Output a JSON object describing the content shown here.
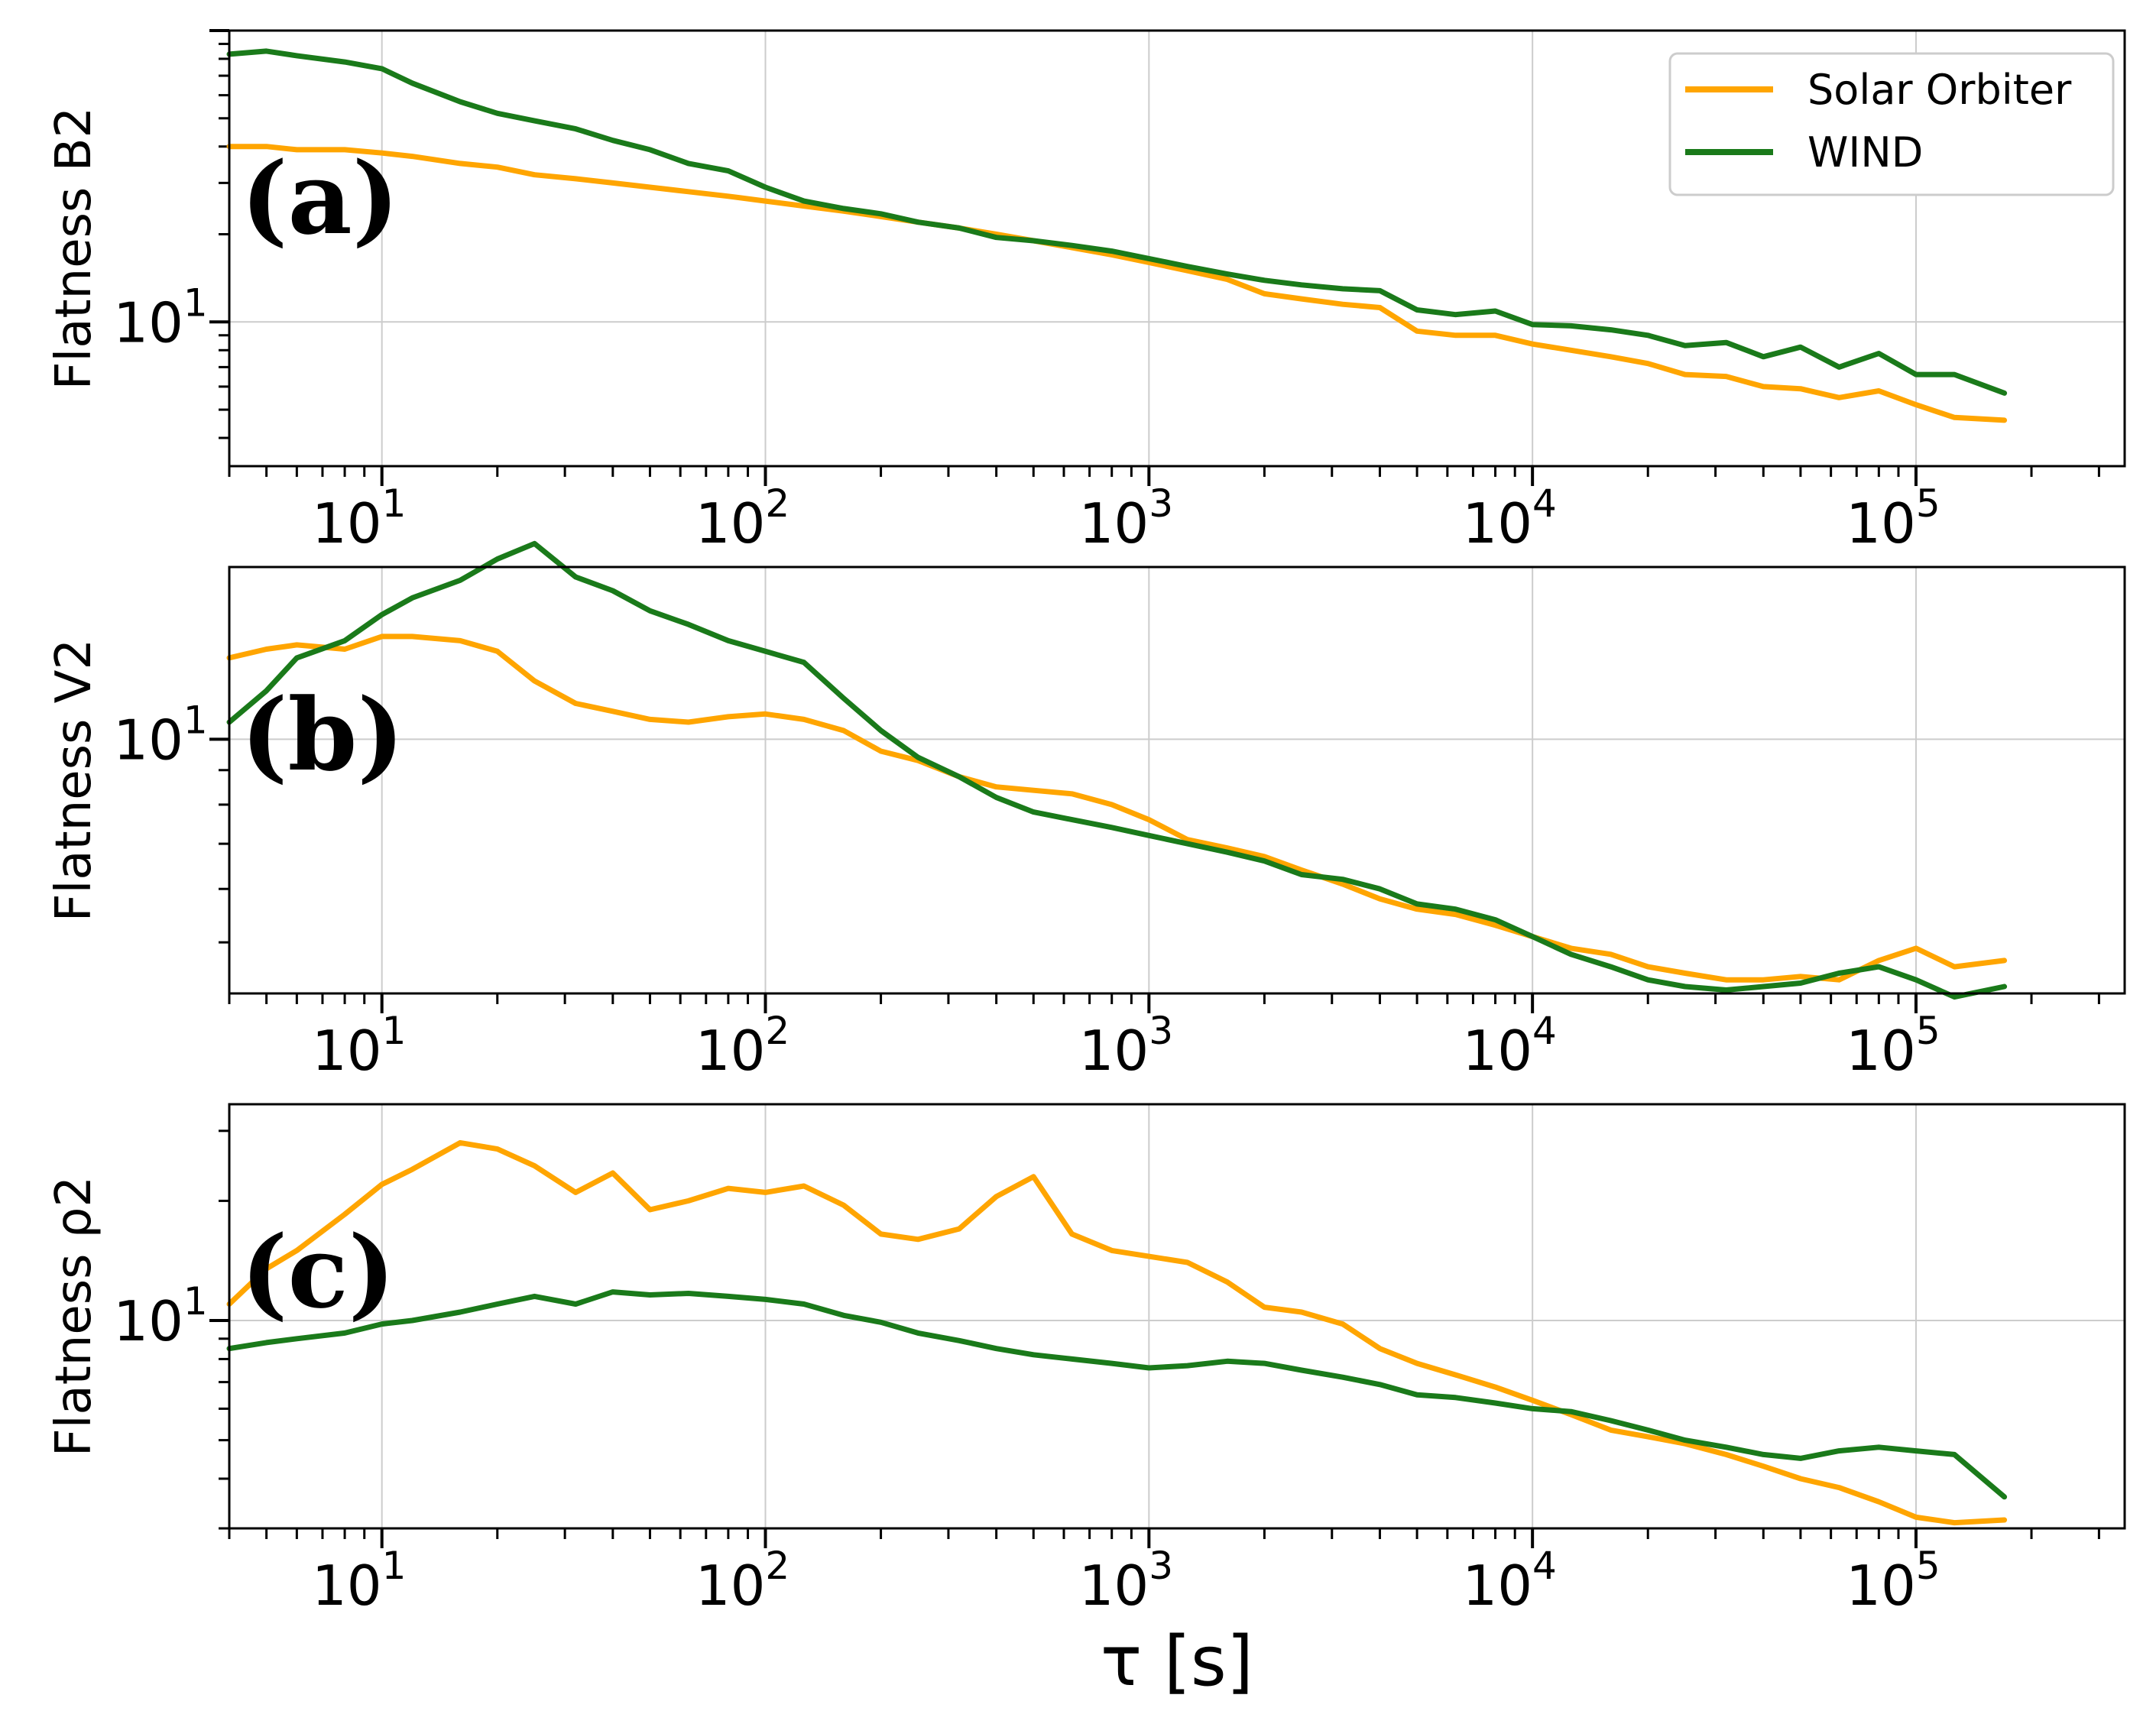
{
  "colors": {
    "solar_orbiter": "#ffa500",
    "wind": "#1a7a1a",
    "grid": "#cccccc",
    "axis": "#000000"
  },
  "legend": {
    "entries": [
      "Solar Orbiter",
      "WIND"
    ],
    "position": "top-right"
  },
  "xlabel": "τ [s]",
  "x_tick_labels": [
    {
      "base": "10",
      "exp": "1"
    },
    {
      "base": "10",
      "exp": "2"
    },
    {
      "base": "10",
      "exp": "3"
    },
    {
      "base": "10",
      "exp": "4"
    },
    {
      "base": "10",
      "exp": "5"
    }
  ],
  "chart_data": [
    {
      "type": "line",
      "xscale": "log",
      "yscale": "log",
      "panel_label": "(a)",
      "ylabel": "Flatness B2",
      "xlim": [
        4,
        350000
      ],
      "ylim": [
        3.2,
        100
      ],
      "y_tick_label": {
        "value": 10,
        "base": "10",
        "exp": "1"
      },
      "x": [
        4,
        5,
        6,
        8,
        10,
        12,
        16,
        20,
        25,
        32,
        40,
        50,
        63,
        80,
        100,
        126,
        160,
        200,
        250,
        320,
        400,
        500,
        630,
        800,
        1000,
        1260,
        1600,
        2000,
        2500,
        3200,
        4000,
        5000,
        6300,
        8000,
        10000,
        12600,
        16000,
        20000,
        25000,
        32000,
        40000,
        50000,
        63000,
        80000,
        100000,
        126000,
        170000
      ],
      "series": [
        {
          "name": "Solar Orbiter",
          "values": [
            40,
            40,
            39,
            39,
            38,
            37,
            35,
            34,
            32,
            31,
            30,
            29,
            28,
            27,
            26,
            25,
            24,
            23,
            22,
            21,
            20,
            19,
            18,
            17,
            16,
            15,
            14,
            12.5,
            12,
            11.5,
            11.2,
            9.3,
            9.0,
            9.0,
            8.4,
            8.0,
            7.6,
            7.2,
            6.6,
            6.5,
            6.0,
            5.9,
            5.5,
            5.8,
            5.2,
            4.7,
            4.6
          ]
        },
        {
          "name": "WIND",
          "values": [
            83,
            85,
            82,
            78,
            74,
            66,
            57,
            52,
            49,
            46,
            42,
            39,
            35,
            33,
            29,
            26,
            24.5,
            23.5,
            22,
            21,
            19.5,
            19,
            18.3,
            17.5,
            16.5,
            15.5,
            14.6,
            13.9,
            13.4,
            13.0,
            12.8,
            11.0,
            10.6,
            10.9,
            9.8,
            9.7,
            9.4,
            9.0,
            8.3,
            8.5,
            7.6,
            8.2,
            7.0,
            7.8,
            6.6,
            6.6,
            5.7
          ]
        }
      ]
    },
    {
      "type": "line",
      "xscale": "log",
      "yscale": "log",
      "panel_label": "(b)",
      "ylabel": "Flatness V2",
      "xlim": [
        4,
        350000
      ],
      "ylim": [
        4.2,
        18
      ],
      "y_tick_label": {
        "value": 10,
        "base": "10",
        "exp": "1"
      },
      "x": [
        4,
        5,
        6,
        8,
        10,
        12,
        16,
        20,
        25,
        32,
        40,
        50,
        63,
        80,
        100,
        126,
        160,
        200,
        250,
        320,
        400,
        500,
        630,
        800,
        1000,
        1260,
        1600,
        2000,
        2500,
        3200,
        4000,
        5000,
        6300,
        8000,
        10000,
        12600,
        16000,
        20000,
        25000,
        32000,
        40000,
        50000,
        63000,
        80000,
        100000,
        126000,
        170000
      ],
      "series": [
        {
          "name": "Solar Orbiter",
          "values": [
            13.2,
            13.6,
            13.8,
            13.6,
            14.2,
            14.2,
            14.0,
            13.5,
            12.2,
            11.3,
            11.0,
            10.7,
            10.6,
            10.8,
            10.9,
            10.7,
            10.3,
            9.6,
            9.3,
            8.8,
            8.5,
            8.4,
            8.3,
            8.0,
            7.6,
            7.1,
            6.9,
            6.7,
            6.4,
            6.1,
            5.8,
            5.6,
            5.5,
            5.3,
            5.1,
            4.9,
            4.8,
            4.6,
            4.5,
            4.4,
            4.4,
            4.45,
            4.4,
            4.7,
            4.9,
            4.6,
            4.7
          ]
        },
        {
          "name": "WIND",
          "values": [
            10.6,
            11.8,
            13.2,
            14.0,
            15.3,
            16.2,
            17.2,
            18.5,
            19.5,
            17.4,
            16.6,
            15.5,
            14.8,
            14.0,
            13.5,
            13.0,
            11.5,
            10.3,
            9.4,
            8.8,
            8.2,
            7.8,
            7.6,
            7.4,
            7.2,
            7.0,
            6.8,
            6.6,
            6.3,
            6.2,
            6.0,
            5.7,
            5.6,
            5.4,
            5.1,
            4.8,
            4.6,
            4.4,
            4.3,
            4.25,
            4.3,
            4.35,
            4.5,
            4.6,
            4.4,
            4.15,
            4.3
          ]
        }
      ]
    },
    {
      "type": "line",
      "xscale": "log",
      "yscale": "log",
      "panel_label": "(c)",
      "ylabel": "Flatness ρ2",
      "xlim": [
        4,
        350000
      ],
      "ylim": [
        3.0,
        35
      ],
      "y_tick_label": {
        "value": 10,
        "base": "10",
        "exp": "1"
      },
      "x": [
        4,
        5,
        6,
        8,
        10,
        12,
        16,
        20,
        25,
        32,
        40,
        50,
        63,
        80,
        100,
        126,
        160,
        200,
        250,
        320,
        400,
        500,
        630,
        800,
        1000,
        1260,
        1600,
        2000,
        2500,
        3200,
        4000,
        5000,
        6300,
        8000,
        10000,
        12600,
        16000,
        20000,
        25000,
        32000,
        40000,
        50000,
        63000,
        80000,
        100000,
        126000,
        170000
      ],
      "series": [
        {
          "name": "Solar Orbiter",
          "values": [
            11.0,
            13.5,
            15.0,
            18.5,
            22.0,
            24.0,
            28.0,
            27.0,
            24.5,
            21.0,
            23.5,
            19.0,
            20.0,
            21.5,
            21.0,
            21.8,
            19.5,
            16.5,
            16.0,
            17.0,
            20.5,
            23.0,
            16.5,
            15.0,
            14.5,
            14.0,
            12.5,
            10.8,
            10.5,
            9.8,
            8.5,
            7.8,
            7.3,
            6.8,
            6.3,
            5.8,
            5.3,
            5.1,
            4.9,
            4.6,
            4.3,
            4.0,
            3.8,
            3.5,
            3.2,
            3.1,
            3.15
          ]
        },
        {
          "name": "WIND",
          "values": [
            8.5,
            8.8,
            9.0,
            9.3,
            9.8,
            10.0,
            10.5,
            11.0,
            11.5,
            11.0,
            11.8,
            11.6,
            11.7,
            11.5,
            11.3,
            11.0,
            10.3,
            9.9,
            9.3,
            8.9,
            8.5,
            8.2,
            8.0,
            7.8,
            7.6,
            7.7,
            7.9,
            7.8,
            7.5,
            7.2,
            6.9,
            6.5,
            6.4,
            6.2,
            6.0,
            5.9,
            5.6,
            5.3,
            5.0,
            4.8,
            4.6,
            4.5,
            4.7,
            4.8,
            4.7,
            4.6,
            3.6
          ]
        }
      ]
    }
  ]
}
